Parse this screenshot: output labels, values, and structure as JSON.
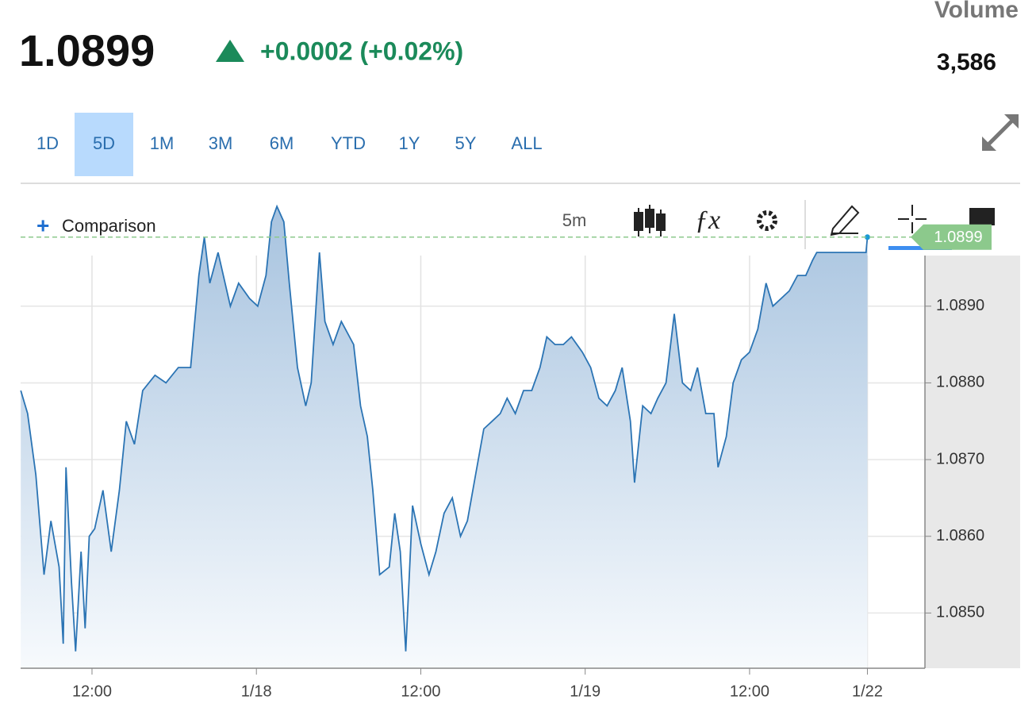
{
  "header": {
    "price": "1.0899",
    "change": "+0.0002 (+0.02%)",
    "volume_label": "Volume",
    "volume": "3,586"
  },
  "ranges": [
    "1D",
    "5D",
    "1M",
    "3M",
    "6M",
    "YTD",
    "1Y",
    "5Y",
    "ALL"
  ],
  "selected_range": "5D",
  "toolbar": {
    "comparison": "Comparison",
    "interval": "5m"
  },
  "chart_data": {
    "type": "area",
    "color": "#2b74b4",
    "x": [
      6.8,
      7.3,
      7.9,
      8.5,
      9.0,
      9.6,
      9.9,
      10.1,
      10.5,
      10.8,
      11.2,
      11.5,
      11.8,
      12.2,
      12.8,
      13.4,
      14.0,
      14.5,
      15.1,
      15.7,
      16.6,
      17.4,
      18.3,
      19.2,
      19.8,
      20.2,
      20.6,
      21.2,
      22.1,
      22.7,
      23.5,
      24.1,
      24.7,
      25.1,
      25.5,
      26.0,
      26.4,
      27.0,
      27.6,
      28.0,
      28.6,
      29.0,
      29.6,
      30.2,
      31.1,
      31.6,
      32.1,
      32.5,
      33.0,
      33.7,
      34.1,
      34.5,
      34.9,
      35.4,
      36.0,
      36.6,
      37.1,
      37.7,
      38.3,
      38.9,
      39.4,
      40.0,
      40.6,
      41.2,
      41.8,
      42.3,
      42.9,
      43.5,
      44.1,
      44.7,
      45.2,
      45.8,
      46.4,
      47.0,
      47.8,
      48.4,
      49.0,
      49.6,
      50.2,
      50.7,
      51.3,
      51.6,
      52.2,
      52.8,
      53.3,
      53.9,
      54.5,
      55.1,
      55.7,
      56.2,
      56.8,
      57.4,
      57.7,
      58.3,
      58.8,
      59.4,
      60.0,
      60.6,
      61.2,
      61.7,
      62.3,
      62.9,
      63.5,
      64.1,
      64.6,
      64.9,
      68.5,
      68.6
    ],
    "values": [
      1.0879,
      1.0876,
      1.0868,
      1.0855,
      1.0862,
      1.0856,
      1.0846,
      1.0869,
      1.0854,
      1.0845,
      1.0858,
      1.0848,
      1.086,
      1.0861,
      1.0866,
      1.0858,
      1.0866,
      1.0875,
      1.0872,
      1.0879,
      1.0881,
      1.088,
      1.0882,
      1.0882,
      1.0894,
      1.0899,
      1.0893,
      1.0897,
      1.089,
      1.0893,
      1.0891,
      1.089,
      1.0894,
      1.0901,
      1.0903,
      1.0901,
      1.0893,
      1.0882,
      1.0877,
      1.088,
      1.0897,
      1.0888,
      1.0885,
      1.0888,
      1.0885,
      1.0877,
      1.0873,
      1.0866,
      1.0855,
      1.0856,
      1.0863,
      1.0858,
      1.0845,
      1.0864,
      1.0859,
      1.0855,
      1.0858,
      1.0863,
      1.0865,
      1.086,
      1.0862,
      1.0868,
      1.0874,
      1.0875,
      1.0876,
      1.0878,
      1.0876,
      1.0879,
      1.0879,
      1.0882,
      1.0886,
      1.0885,
      1.0885,
      1.0886,
      1.0884,
      1.0882,
      1.0878,
      1.0877,
      1.0879,
      1.0882,
      1.0875,
      1.0867,
      1.0877,
      1.0876,
      1.0878,
      1.088,
      1.0889,
      1.088,
      1.0879,
      1.0882,
      1.0876,
      1.0876,
      1.0869,
      1.0873,
      1.088,
      1.0883,
      1.0884,
      1.0887,
      1.0893,
      1.089,
      1.0891,
      1.0892,
      1.0894,
      1.0894,
      1.0896,
      1.0897,
      1.0897,
      1.0899
    ],
    "xlim": [
      6.79,
      72.8
    ],
    "xticks": [
      {
        "value": 12,
        "label": "12:00"
      },
      {
        "value": 24,
        "label": "1/18"
      },
      {
        "value": 36,
        "label": "12:00"
      },
      {
        "value": 48,
        "label": "1/19"
      },
      {
        "value": 60,
        "label": "12:00"
      },
      {
        "value": 68.6,
        "label": "1/22"
      }
    ],
    "ylim": [
      1.08428,
      1.08966
    ],
    "yticks": [
      {
        "value": 1.085,
        "label": "1.0850"
      },
      {
        "value": 1.086,
        "label": "1.0860"
      },
      {
        "value": 1.087,
        "label": "1.0870"
      },
      {
        "value": 1.088,
        "label": "1.0880"
      },
      {
        "value": 1.089,
        "label": "1.0890"
      }
    ],
    "current_price": {
      "value": 1.0899,
      "label": "1.0899"
    },
    "grid": true
  }
}
